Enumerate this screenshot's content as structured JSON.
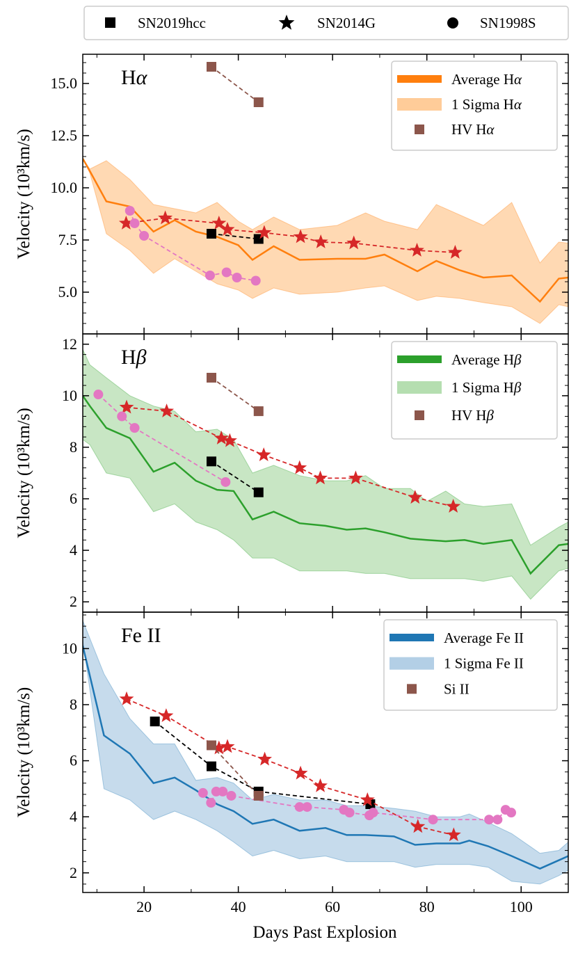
{
  "chart_data": {
    "type": "line",
    "shared": {
      "xlabel": "Days Past Explosion",
      "xlim": [
        7,
        110
      ],
      "xticks": [
        20,
        40,
        60,
        80,
        100
      ],
      "top_legend": [
        {
          "label": "SN2019hcc",
          "marker": "square"
        },
        {
          "label": "SN2014G",
          "marker": "star"
        },
        {
          "label": "SN1998S",
          "marker": "circle"
        }
      ]
    },
    "panels": [
      {
        "title_main": "H",
        "title_greek": "α",
        "ylabel": "Velocity (10³km/s)",
        "ylim": [
          3.0,
          16.4
        ],
        "yticks": [
          5.0,
          7.5,
          10.0,
          12.5,
          15.0
        ],
        "ytick_labels": [
          "5.0",
          "7.5",
          "10.0",
          "12.5",
          "15.0"
        ],
        "legend": [
          {
            "label": "Average Hα",
            "type": "line",
            "color": "#ff7f0e"
          },
          {
            "label": "1 Sigma Hα",
            "type": "band",
            "color": "#ffcc99"
          },
          {
            "label": "HV Hα",
            "type": "square",
            "color": "#8c564b"
          }
        ],
        "average": {
          "color": "#ff7f0e",
          "x": [
            7,
            8.5,
            12,
            17,
            22,
            26.5,
            31,
            35.5,
            40,
            43,
            47.5,
            53,
            61,
            67,
            71,
            78,
            82,
            87,
            92,
            98,
            104,
            108,
            110
          ],
          "y": [
            11.4,
            10.8,
            9.35,
            9.1,
            7.9,
            8.45,
            7.9,
            7.65,
            7.25,
            6.55,
            7.2,
            6.55,
            6.6,
            6.6,
            6.8,
            6.0,
            6.5,
            6.05,
            5.7,
            5.8,
            4.55,
            5.65,
            5.7
          ]
        },
        "sigma": {
          "color": "#ffcc99",
          "x": [
            7,
            8.5,
            12,
            17,
            22,
            26.5,
            31,
            35.5,
            40,
            43,
            47.5,
            53,
            61,
            67,
            71,
            78,
            82,
            87,
            92,
            98,
            104,
            108,
            110
          ],
          "upper": [
            11.4,
            10.9,
            11.3,
            10.4,
            9.2,
            9.0,
            8.8,
            9.3,
            8.4,
            8.0,
            8.6,
            8.0,
            8.2,
            8.8,
            8.4,
            8.0,
            9.2,
            8.7,
            8.2,
            9.3,
            6.4,
            7.4,
            7.35
          ],
          "lower": [
            11.4,
            10.7,
            7.8,
            7.0,
            5.9,
            6.6,
            6.0,
            5.4,
            5.1,
            4.7,
            5.2,
            4.9,
            5.0,
            5.2,
            5.3,
            4.6,
            4.8,
            4.7,
            4.5,
            4.3,
            3.5,
            4.4,
            4.3
          ]
        },
        "series": [
          {
            "name": "SN2019hcc",
            "marker": "square",
            "color": "#000000",
            "line": "#000000",
            "x": [
              34.3,
              44.3
            ],
            "y": [
              7.8,
              7.55
            ]
          },
          {
            "name": "SN2014G",
            "marker": "star",
            "color": "#d62728",
            "line": "#d62728",
            "x": [
              16.2,
              24.5,
              35.9,
              37.7,
              45.5,
              53.2,
              57.5,
              64.5,
              77.9,
              86
            ],
            "y": [
              8.3,
              8.55,
              8.3,
              8.0,
              7.85,
              7.65,
              7.4,
              7.35,
              7.0,
              6.9
            ]
          },
          {
            "name": "SN1998S",
            "marker": "circle",
            "color": "#e377c2",
            "line": "#e377c2",
            "x": [
              17,
              18,
              20,
              34,
              37.5,
              39.7,
              43.7
            ],
            "y": [
              8.9,
              8.3,
              7.7,
              5.8,
              5.95,
              5.7,
              5.55
            ]
          },
          {
            "name": "HV Hα",
            "marker": "square",
            "color": "#8c564b",
            "line": "#8c564b",
            "x": [
              34.3,
              44.3
            ],
            "y": [
              15.8,
              14.1
            ]
          }
        ]
      },
      {
        "title_main": "H",
        "title_greek": "β",
        "ylabel": "Velocity (10³km/s)",
        "ylim": [
          1.6,
          12.4
        ],
        "yticks": [
          2,
          4,
          6,
          8,
          10,
          12
        ],
        "ytick_labels": [
          "2",
          "4",
          "6",
          "8",
          "10",
          "12"
        ],
        "legend": [
          {
            "label": "Average Hβ",
            "type": "line",
            "color": "#2ca02c"
          },
          {
            "label": "1 Sigma Hβ",
            "type": "band",
            "color": "#b5deb0"
          },
          {
            "label": "HV Hβ",
            "type": "square",
            "color": "#8c564b"
          }
        ],
        "average": {
          "color": "#2ca02c",
          "x": [
            7,
            8.5,
            12,
            17,
            22,
            26.5,
            31,
            35.5,
            39,
            43,
            47.5,
            53,
            58.5,
            63,
            67,
            71,
            76.5,
            80,
            84,
            88,
            92,
            98,
            102,
            108,
            110
          ],
          "y": [
            10.0,
            9.6,
            8.75,
            8.35,
            7.05,
            7.4,
            6.7,
            6.35,
            6.3,
            5.2,
            5.5,
            5.05,
            4.95,
            4.8,
            4.85,
            4.7,
            4.45,
            4.4,
            4.35,
            4.4,
            4.25,
            4.4,
            3.1,
            4.2,
            4.25
          ]
        },
        "sigma": {
          "color": "#b5deb0",
          "x": [
            7,
            8.5,
            12,
            17,
            22,
            26.5,
            31,
            35.5,
            39,
            43,
            47.5,
            53,
            58.5,
            63,
            67,
            71,
            76.5,
            80,
            84,
            88,
            92,
            98,
            102,
            108,
            110
          ],
          "upper": [
            11.8,
            11.2,
            10.7,
            10.0,
            9.6,
            9.4,
            8.6,
            8.7,
            8.3,
            7.0,
            7.3,
            6.9,
            6.7,
            6.7,
            6.9,
            6.4,
            6.4,
            5.9,
            6.3,
            5.8,
            5.7,
            5.8,
            4.2,
            4.9,
            5.1
          ],
          "lower": [
            8.3,
            8.1,
            7.0,
            6.8,
            5.5,
            5.8,
            5.1,
            4.8,
            4.4,
            3.7,
            3.7,
            3.2,
            3.2,
            3.2,
            3.1,
            3.1,
            2.9,
            2.9,
            2.9,
            2.9,
            2.8,
            3.0,
            2.1,
            3.2,
            3.3
          ]
        },
        "series": [
          {
            "name": "SN2019hcc",
            "marker": "square",
            "color": "#000000",
            "line": "#000000",
            "x": [
              34.3,
              44.3
            ],
            "y": [
              7.45,
              6.25
            ]
          },
          {
            "name": "SN2014G",
            "marker": "star",
            "color": "#d62728",
            "line": "#d62728",
            "x": [
              16.3,
              24.8,
              36.4,
              38.2,
              45.4,
              53,
              57.4,
              64.9,
              77.5,
              85.6
            ],
            "y": [
              9.55,
              9.4,
              8.35,
              8.25,
              7.7,
              7.2,
              6.8,
              6.8,
              6.05,
              5.7
            ]
          },
          {
            "name": "SN1998S",
            "marker": "circle",
            "color": "#e377c2",
            "line": "#e377c2",
            "x": [
              10.3,
              15.3,
              18,
              37.3
            ],
            "y": [
              10.05,
              9.2,
              8.75,
              6.65
            ]
          },
          {
            "name": "HV Hβ",
            "marker": "square",
            "color": "#8c564b",
            "line": "#8c564b",
            "x": [
              34.3,
              44.3
            ],
            "y": [
              10.7,
              9.4
            ]
          }
        ]
      },
      {
        "title_main": "Fe II",
        "title_greek": "",
        "ylabel": "Velocity (10³km/s)",
        "ylim": [
          1.3,
          11.3
        ],
        "yticks": [
          2,
          4,
          6,
          8,
          10
        ],
        "ytick_labels": [
          "2",
          "4",
          "6",
          "8",
          "10"
        ],
        "legend": [
          {
            "label": "Average Fe II",
            "type": "line",
            "color": "#1f77b4"
          },
          {
            "label": "1 Sigma Fe II",
            "type": "band",
            "color": "#b3cfe6"
          },
          {
            "label": "Si II",
            "type": "square",
            "color": "#8c564b"
          }
        ],
        "average": {
          "color": "#1f77b4",
          "x": [
            7,
            11.5,
            17,
            22,
            26.5,
            31,
            35.5,
            39,
            43,
            47.5,
            53,
            58.5,
            63,
            67,
            73,
            77.5,
            82,
            87,
            89,
            93,
            98,
            104,
            108,
            110
          ],
          "y": [
            10.1,
            6.9,
            6.25,
            5.2,
            5.4,
            4.95,
            4.45,
            4.2,
            3.75,
            3.9,
            3.5,
            3.6,
            3.35,
            3.35,
            3.3,
            3.0,
            3.05,
            3.05,
            3.15,
            2.95,
            2.6,
            2.15,
            2.45,
            2.6
          ]
        },
        "sigma": {
          "color": "#b3cfe6",
          "x": [
            7,
            11.5,
            17,
            22,
            26.5,
            31,
            35.5,
            39,
            43,
            47.5,
            53,
            58.5,
            63,
            67,
            73,
            77.5,
            82,
            87,
            89,
            93,
            98,
            104,
            108,
            110
          ],
          "upper": [
            11.0,
            9.1,
            7.5,
            6.6,
            6.6,
            5.3,
            5.4,
            5.2,
            4.6,
            4.8,
            4.6,
            4.6,
            4.4,
            4.4,
            4.3,
            4.2,
            4.0,
            4.0,
            4.1,
            3.8,
            3.4,
            2.7,
            2.8,
            3.1
          ],
          "lower": [
            10.3,
            5.0,
            4.6,
            3.9,
            4.2,
            3.9,
            3.5,
            3.1,
            2.6,
            2.8,
            2.5,
            2.6,
            2.4,
            2.4,
            2.4,
            2.2,
            2.3,
            2.3,
            2.3,
            2.2,
            1.7,
            1.6,
            1.9,
            2.1
          ]
        },
        "series": [
          {
            "name": "SN2019hcc",
            "marker": "square",
            "color": "#000000",
            "line": "#000000",
            "x": [
              22.3,
              34.3,
              44.3,
              68
            ],
            "y": [
              7.4,
              5.8,
              4.9,
              4.45
            ]
          },
          {
            "name": "SN2014G",
            "marker": "star",
            "color": "#d62728",
            "line": "#d62728",
            "x": [
              16.3,
              24.7,
              35.9,
              37.7,
              45.6,
              53.2,
              57.4,
              67.4,
              78.1,
              85.7
            ],
            "y": [
              8.2,
              7.6,
              6.45,
              6.5,
              6.05,
              5.55,
              5.1,
              4.6,
              3.65,
              3.35
            ]
          },
          {
            "name": "SN1998S",
            "marker": "circle",
            "color": "#e377c2",
            "line": "#e377c2",
            "x": [
              32.5,
              34.2,
              35.3,
              36.7,
              38.5,
              53,
              54.6,
              62.4,
              63.6,
              67.8,
              68.6,
              81.3,
              93.2,
              95,
              96.7,
              97.9
            ],
            "y": [
              4.85,
              4.5,
              4.9,
              4.9,
              4.75,
              4.35,
              4.35,
              4.25,
              4.15,
              4.05,
              4.15,
              3.9,
              3.9,
              3.9,
              4.25,
              4.15
            ]
          },
          {
            "name": "Si II",
            "marker": "square",
            "color": "#8c564b",
            "line": "#8c564b",
            "x": [
              34.3,
              44.3
            ],
            "y": [
              6.55,
              4.75
            ]
          }
        ]
      }
    ]
  }
}
